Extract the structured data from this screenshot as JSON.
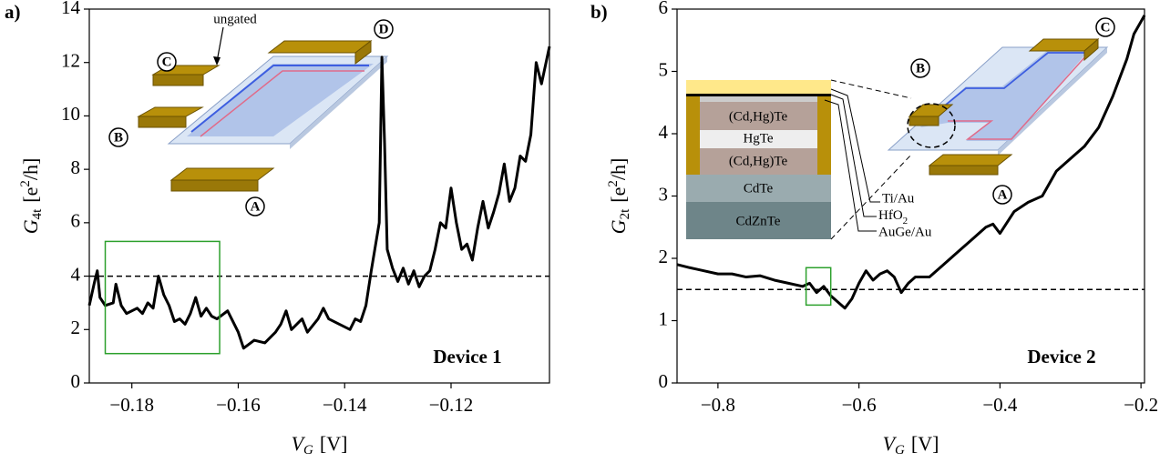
{
  "chart_data": [
    {
      "type": "line",
      "panel_label": "a)",
      "xlabel": {
        "symbol": "V",
        "subscript": "G",
        "unit": "[V]"
      },
      "ylabel": {
        "symbol": "G",
        "subscript": "4t",
        "unit": "[e",
        "superscript": "2",
        "unit_end": "/h]"
      },
      "xlim": [
        -0.188,
        -0.1015
      ],
      "ylim": [
        0,
        14
      ],
      "xticks": [
        {
          "value": -0.18,
          "label": "−0.18"
        },
        {
          "value": -0.16,
          "label": "−0.16"
        },
        {
          "value": -0.14,
          "label": "−0.14"
        },
        {
          "value": -0.12,
          "label": "−0.12"
        }
      ],
      "yticks": [
        0,
        2,
        4,
        6,
        8,
        10,
        12,
        14
      ],
      "color": "#000000",
      "hline": 4,
      "highlight": {
        "x": [
          -0.185,
          -0.1635
        ],
        "y": [
          1.1,
          5.3
        ],
        "color": "#2ca02c"
      },
      "x": [
        -0.188,
        -0.187,
        -0.1865,
        -0.186,
        -0.185,
        -0.1835,
        -0.183,
        -0.182,
        -0.181,
        -0.179,
        -0.178,
        -0.177,
        -0.176,
        -0.175,
        -0.174,
        -0.173,
        -0.172,
        -0.171,
        -0.17,
        -0.169,
        -0.168,
        -0.167,
        -0.166,
        -0.165,
        -0.164,
        -0.162,
        -0.161,
        -0.16,
        -0.159,
        -0.157,
        -0.155,
        -0.153,
        -0.152,
        -0.151,
        -0.15,
        -0.148,
        -0.147,
        -0.145,
        -0.144,
        -0.143,
        -0.141,
        -0.139,
        -0.138,
        -0.137,
        -0.136,
        -0.135,
        -0.1335,
        -0.133,
        -0.1325,
        -0.132,
        -0.131,
        -0.13,
        -0.129,
        -0.128,
        -0.127,
        -0.126,
        -0.125,
        -0.124,
        -0.123,
        -0.122,
        -0.121,
        -0.12,
        -0.119,
        -0.118,
        -0.117,
        -0.116,
        -0.115,
        -0.114,
        -0.113,
        -0.112,
        -0.111,
        -0.11,
        -0.109,
        -0.108,
        -0.107,
        -0.106,
        -0.105,
        -0.104,
        -0.103,
        -0.1015
      ],
      "values": [
        2.9,
        3.8,
        4.2,
        3.2,
        2.9,
        3.0,
        3.7,
        2.9,
        2.6,
        2.8,
        2.6,
        3.0,
        2.8,
        4.0,
        3.3,
        2.9,
        2.3,
        2.4,
        2.2,
        2.6,
        3.2,
        2.5,
        2.8,
        2.5,
        2.4,
        2.7,
        2.3,
        1.9,
        1.3,
        1.6,
        1.5,
        1.9,
        2.2,
        2.7,
        2.0,
        2.4,
        1.9,
        2.4,
        2.8,
        2.4,
        2.2,
        2.0,
        2.4,
        2.3,
        2.9,
        4.2,
        6.0,
        12.2,
        9.0,
        5.0,
        4.3,
        3.8,
        4.3,
        3.7,
        4.2,
        3.6,
        4.0,
        4.2,
        5.0,
        6.0,
        5.8,
        7.3,
        6.0,
        5.0,
        5.2,
        4.6,
        5.8,
        6.8,
        5.8,
        6.4,
        7.1,
        8.2,
        6.8,
        7.3,
        8.5,
        8.3,
        9.3,
        12.0,
        11.2,
        12.6
      ],
      "inset_note": "ungated",
      "contacts": [
        "A",
        "B",
        "C",
        "D"
      ],
      "device_label": "Device 1"
    },
    {
      "type": "line",
      "panel_label": "b)",
      "xlabel": {
        "symbol": "V",
        "subscript": "G",
        "unit": "[V]"
      },
      "ylabel": {
        "symbol": "G",
        "subscript": "2t",
        "unit": "[e",
        "superscript": "2",
        "unit_end": "/h]"
      },
      "xlim": [
        -0.858,
        -0.195
      ],
      "ylim": [
        0,
        6
      ],
      "xticks": [
        {
          "value": -0.8,
          "label": "−0.8"
        },
        {
          "value": -0.6,
          "label": "−0.6"
        },
        {
          "value": -0.4,
          "label": "−0.4"
        },
        {
          "value": -0.2,
          "label": "−0.2"
        }
      ],
      "yticks": [
        0,
        1,
        2,
        3,
        4,
        5,
        6
      ],
      "color": "#000000",
      "hline": 1.5,
      "highlight": {
        "x": [
          -0.675,
          -0.64
        ],
        "y": [
          1.25,
          1.85
        ],
        "color": "#2ca02c"
      },
      "x": [
        -0.858,
        -0.84,
        -0.82,
        -0.8,
        -0.78,
        -0.76,
        -0.74,
        -0.72,
        -0.7,
        -0.68,
        -0.67,
        -0.66,
        -0.65,
        -0.64,
        -0.63,
        -0.62,
        -0.61,
        -0.6,
        -0.59,
        -0.58,
        -0.57,
        -0.56,
        -0.55,
        -0.54,
        -0.53,
        -0.52,
        -0.5,
        -0.48,
        -0.46,
        -0.44,
        -0.42,
        -0.41,
        -0.4,
        -0.38,
        -0.36,
        -0.34,
        -0.32,
        -0.3,
        -0.28,
        -0.26,
        -0.24,
        -0.22,
        -0.21,
        -0.2,
        -0.195
      ],
      "values": [
        1.9,
        1.85,
        1.8,
        1.75,
        1.75,
        1.7,
        1.72,
        1.65,
        1.6,
        1.55,
        1.6,
        1.45,
        1.55,
        1.4,
        1.3,
        1.2,
        1.35,
        1.6,
        1.8,
        1.65,
        1.75,
        1.8,
        1.7,
        1.45,
        1.6,
        1.7,
        1.7,
        1.9,
        2.1,
        2.3,
        2.5,
        2.55,
        2.4,
        2.75,
        2.9,
        3.0,
        3.4,
        3.6,
        3.8,
        4.1,
        4.6,
        5.2,
        5.6,
        5.8,
        5.9
      ],
      "layers": [
        "(Cd,Hg)Te",
        "HgTe",
        "(Cd,Hg)Te",
        "CdTe",
        "CdZnTe"
      ],
      "metal_labels": [
        "Ti/Au",
        {
          "base": "HfO",
          "sub": "2"
        },
        "AuGe/Au"
      ],
      "contacts": [
        "A",
        "B",
        "C"
      ],
      "device_label": "Device 2"
    }
  ]
}
